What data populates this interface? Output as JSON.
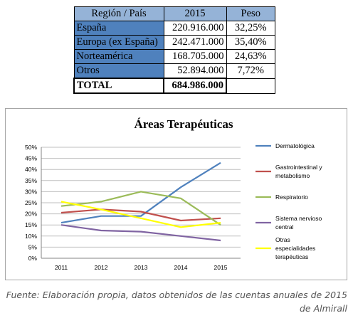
{
  "table": {
    "headers": [
      "Región / País",
      "2015",
      "Peso"
    ],
    "rows": [
      {
        "region": "España",
        "value": "220.916.000",
        "share": "32,25%"
      },
      {
        "region": "Europa (ex España)",
        "value": "242.471.000",
        "share": "35,40%"
      },
      {
        "region": "Norteamérica",
        "value": "168.705.000",
        "share": "24,63%"
      },
      {
        "region": "Otros",
        "value": "52.894.000",
        "share": "7,72%"
      }
    ],
    "total": {
      "label": "TOTAL",
      "value": "684.986.000",
      "share": ""
    },
    "colors": {
      "header_bg": "#95b3d7",
      "region_bg": "#4f81bd"
    }
  },
  "chart_data": {
    "type": "line",
    "title": "Áreas Terapéuticas",
    "xlabel": "",
    "ylabel": "",
    "categories": [
      "2011",
      "2012",
      "2013",
      "2014",
      "2015"
    ],
    "ylim": [
      0,
      50
    ],
    "yticks": [
      "0%",
      "5%",
      "10%",
      "15%",
      "20%",
      "25%",
      "30%",
      "35%",
      "40%",
      "45%",
      "50%"
    ],
    "grid": true,
    "legend_position": "right",
    "series": [
      {
        "name": "Dermatológica",
        "color": "#4f81bd",
        "values": [
          16,
          19,
          19,
          32,
          43
        ]
      },
      {
        "name": "Gastrointestinal y metabolismo",
        "color": "#c0504d",
        "values": [
          20.5,
          22,
          21,
          17,
          18
        ]
      },
      {
        "name": "Respiratorio",
        "color": "#9bbb59",
        "values": [
          23.5,
          25.5,
          30,
          27,
          15
        ]
      },
      {
        "name": "Sistema nervioso central",
        "color": "#8064a2",
        "values": [
          15,
          12.5,
          12,
          10,
          8
        ]
      },
      {
        "name": "Otras especialidades terapéuticas",
        "color": "#ffff00",
        "values": [
          25.5,
          22,
          18,
          14,
          16
        ]
      }
    ]
  },
  "caption": "Fuente: Elaboración propia, datos obtenidos de las cuentas anuales de 2015 de Almirall"
}
